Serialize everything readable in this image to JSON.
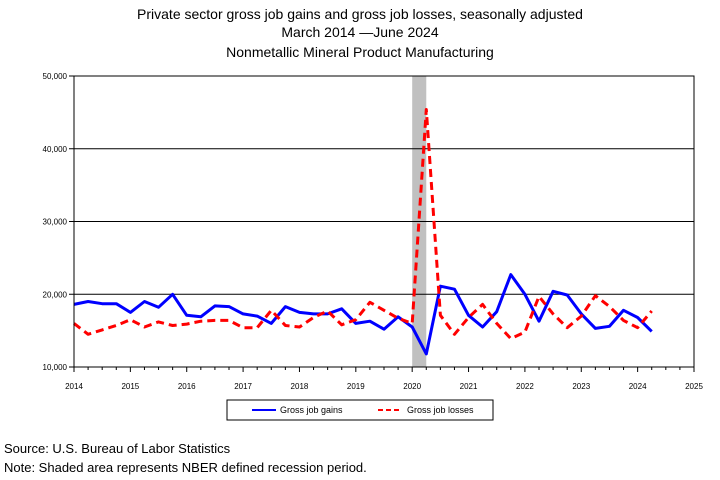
{
  "header": {
    "line1": "Private sector gross job gains and gross job losses, seasonally adjusted",
    "line2": "March 2014 —June 2024",
    "line3": "Nonmetallic Mineral Product Manufacturing"
  },
  "footer": {
    "source": "Source: U.S. Bureau of Labor Statistics",
    "note": "Note: Shaded area represents NBER defined recession period."
  },
  "chart_data": {
    "type": "line",
    "title": "Private sector gross job gains and gross job losses, seasonally adjusted",
    "xlabel": "",
    "ylabel": "",
    "xlim": [
      2014,
      2025
    ],
    "ylim": [
      10000,
      50000
    ],
    "x_ticks": [
      "2014",
      "2015",
      "2016",
      "2017",
      "2018",
      "2019",
      "2020",
      "2021",
      "2022",
      "2023",
      "2024",
      "2025"
    ],
    "y_ticks": [
      "10,000",
      "20,000",
      "30,000",
      "40,000",
      "50,000"
    ],
    "grid": "horizontal",
    "legend_position": "bottom",
    "recession": [
      2020.0,
      2020.25
    ],
    "x": [
      2014.0,
      2014.25,
      2014.5,
      2014.75,
      2015.0,
      2015.25,
      2015.5,
      2015.75,
      2016.0,
      2016.25,
      2016.5,
      2016.75,
      2017.0,
      2017.25,
      2017.5,
      2017.75,
      2018.0,
      2018.25,
      2018.5,
      2018.75,
      2019.0,
      2019.25,
      2019.5,
      2019.75,
      2020.0,
      2020.25,
      2020.5,
      2020.75,
      2021.0,
      2021.25,
      2021.5,
      2021.75,
      2022.0,
      2022.25,
      2022.5,
      2022.75,
      2023.0,
      2023.25,
      2023.5,
      2023.75,
      2024.0,
      2024.25
    ],
    "series": [
      {
        "name": "Gross job gains",
        "color": "#0000ff",
        "style": "solid",
        "values": [
          18600,
          19000,
          18700,
          18700,
          17500,
          19000,
          18200,
          20000,
          17100,
          16900,
          18400,
          18300,
          17300,
          17000,
          16000,
          18300,
          17500,
          17300,
          17300,
          18000,
          16000,
          16300,
          15200,
          16900,
          15500,
          11800,
          21100,
          20700,
          17100,
          15500,
          17600,
          22700,
          20000,
          16300,
          20400,
          19900,
          17300,
          15300,
          15600,
          17800,
          16800,
          14900
        ]
      },
      {
        "name": "Gross job losses",
        "color": "#ff0000",
        "style": "dashed",
        "values": [
          16000,
          14500,
          15100,
          15700,
          16500,
          15500,
          16200,
          15700,
          15900,
          16300,
          16400,
          16400,
          15400,
          15400,
          17800,
          15700,
          15500,
          16800,
          17700,
          15800,
          16500,
          18900,
          17800,
          16700,
          16000,
          45400,
          17100,
          14500,
          16800,
          18600,
          16000,
          13900,
          14800,
          19700,
          17300,
          15400,
          17000,
          19800,
          18300,
          16400,
          15400,
          17700
        ]
      }
    ]
  },
  "colors": {
    "recession_shade": "#c0c0c0"
  }
}
